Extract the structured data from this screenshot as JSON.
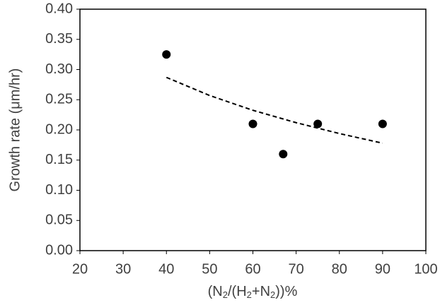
{
  "chart_data": {
    "type": "scatter",
    "xlabel": [
      "(N",
      "2",
      "/(H",
      "2",
      "+N",
      "2",
      "))%"
    ],
    "ylabel": "Growth rate (μm/hr)",
    "x": [
      40,
      60,
      67,
      75,
      90
    ],
    "values": [
      0.325,
      0.21,
      0.16,
      0.21,
      0.21
    ],
    "color": "#000000",
    "trendline": {
      "x": [
        40,
        50,
        60,
        70,
        80,
        90
      ],
      "values": [
        0.287,
        0.257,
        0.2325,
        0.212,
        0.194,
        0.178
      ],
      "color": "#000000",
      "dash": true
    },
    "xlim": [
      20,
      100
    ],
    "xticks": [
      20,
      30,
      40,
      50,
      60,
      70,
      80,
      90,
      100
    ],
    "ylim": [
      0,
      0.4
    ],
    "yticks": [
      {
        "value": 0,
        "label": "0.00"
      },
      0.05,
      {
        "value": 0.1,
        "label": "0.10"
      },
      0.15,
      {
        "value": 0.2,
        "label": "0.20"
      },
      0.25,
      {
        "value": 0.3,
        "label": "0.30"
      },
      0.35,
      {
        "value": 0.4,
        "label": "0.40"
      }
    ]
  }
}
